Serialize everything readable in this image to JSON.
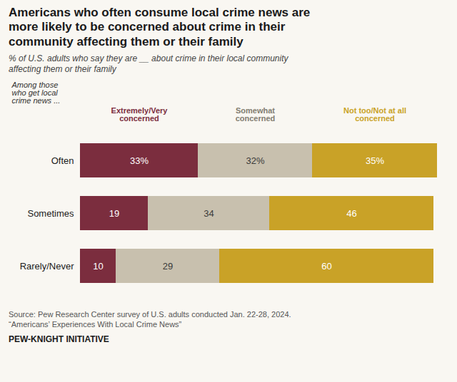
{
  "chart_data": {
    "type": "bar",
    "orientation": "horizontal",
    "stacked": true,
    "data_labels": true,
    "tick_labels": "y",
    "legend": "top",
    "title": "Americans who often consume local crime news are\nmore likely to be concerned about crime in their\ncommunity affecting them or their family",
    "subtitle": "% of U.S. adults who say they are __ about crime in their local community\naffecting them or their family",
    "annotations": [
      "Among those\nwho get local\ncrime news ..."
    ],
    "source": "Source: Pew Research Center survey of U.S. adults conducted Jan. 22-28, 2024.\n“Americans’ Experiences With Local Crime News”",
    "footer": "PEW-KNIGHT INITIATIVE",
    "categories": [
      "Often",
      "Sometimes",
      "Rarely/Never"
    ],
    "series": [
      {
        "name": "Extremely/Very\nconcerned",
        "color": "#7b2d3e",
        "values": [
          33,
          19,
          10
        ],
        "value_labels": [
          "33%",
          "19",
          "10"
        ]
      },
      {
        "name": "Somewhat\nconcerned",
        "color": "#c8c0ae",
        "values": [
          32,
          34,
          29
        ],
        "value_labels": [
          "32%",
          "34",
          "29"
        ]
      },
      {
        "name": "Not too/Not at all\nconcerned",
        "color": "#c9a227",
        "values": [
          35,
          46,
          60
        ],
        "value_labels": [
          "35%",
          "46",
          "60"
        ]
      }
    ],
    "xlim": [
      0,
      100
    ]
  }
}
